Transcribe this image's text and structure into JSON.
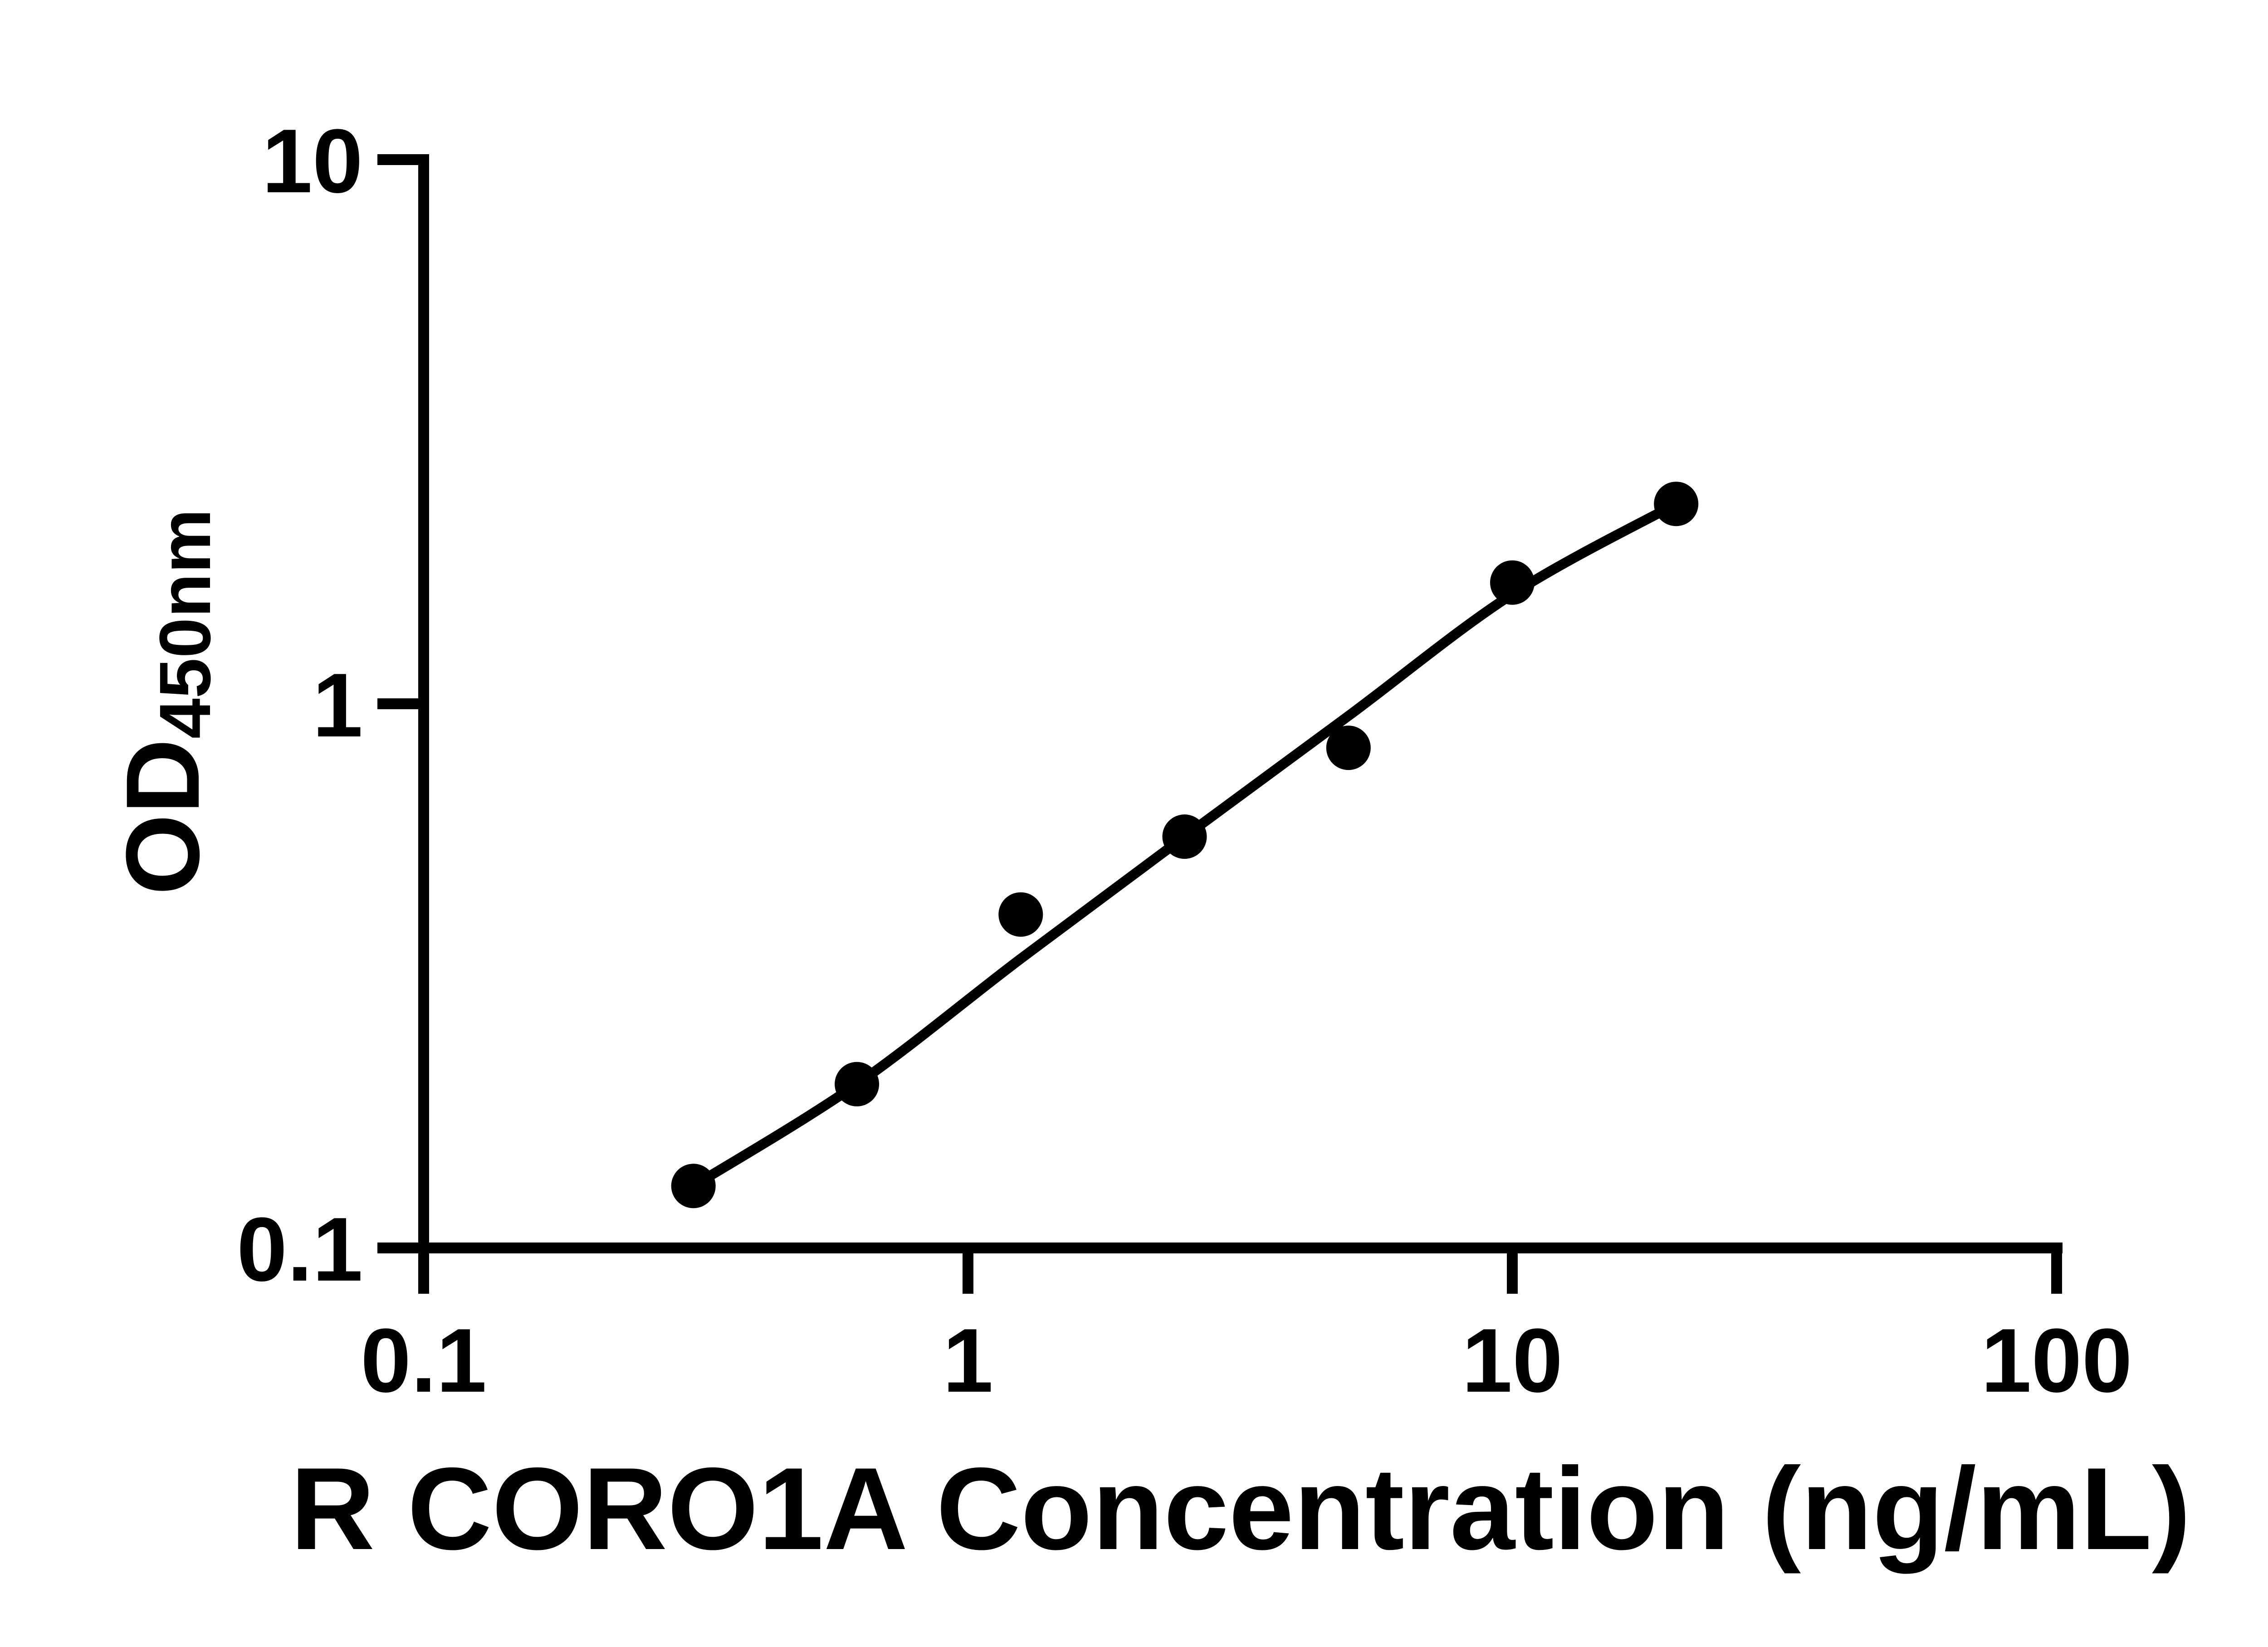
{
  "chart_data": {
    "type": "scatter",
    "title": "",
    "xlabel": "R CORO1A Concentration (ng/mL)",
    "ylabel_main": "OD",
    "ylabel_sub": "450nm",
    "x_scale": "log",
    "y_scale": "log",
    "xlim": [
      0.1,
      100
    ],
    "ylim": [
      0.1,
      10
    ],
    "x_ticks": [
      0.1,
      1,
      10,
      100
    ],
    "x_tick_labels": [
      "0.1",
      "1",
      "10",
      "100"
    ],
    "y_ticks": [
      0.1,
      1,
      10
    ],
    "y_tick_labels": [
      "0.1",
      "1",
      "10"
    ],
    "grid": false,
    "legend": false,
    "marker_color": "#000000",
    "line_color": "#000000",
    "background_color": "#ffffff",
    "series": [
      {
        "name": "standard-points",
        "type": "scatter",
        "x": [
          0.313,
          0.625,
          1.25,
          2.5,
          5,
          10,
          20
        ],
        "y": [
          0.13,
          0.2,
          0.41,
          0.57,
          0.83,
          1.67,
          2.33
        ]
      },
      {
        "name": "fit-curve",
        "type": "line",
        "x": [
          0.313,
          0.625,
          1.25,
          2.5,
          5,
          10,
          20
        ],
        "y": [
          0.13,
          0.2,
          0.34,
          0.57,
          0.95,
          1.59,
          2.33
        ]
      }
    ]
  }
}
